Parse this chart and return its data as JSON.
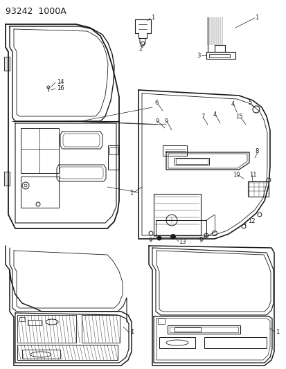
{
  "title": "93242  1000A",
  "bg_color": "#ffffff",
  "line_color": "#1a1a1a",
  "fig_width": 4.14,
  "fig_height": 5.33,
  "dpi": 100
}
